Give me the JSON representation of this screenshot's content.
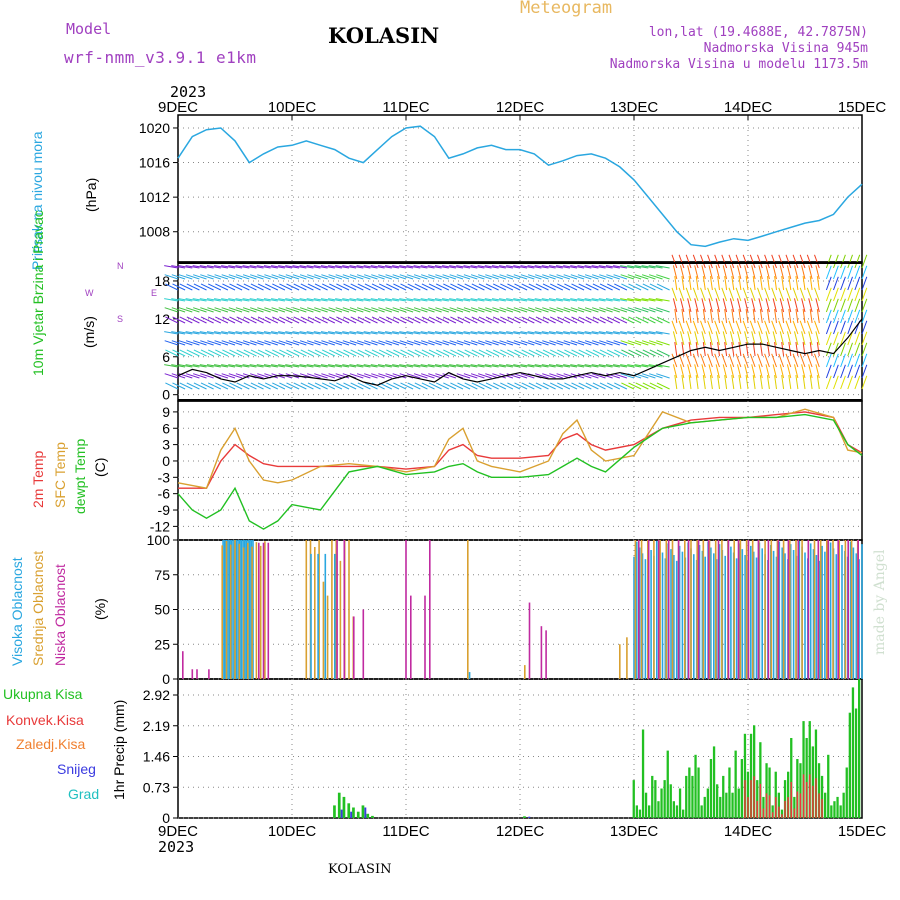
{
  "header": {
    "model_label": "Model",
    "model_name": "wrf-nmm_v3.9.1 e1km",
    "station": "KOLASIN",
    "meteogram": "Meteogram",
    "lonlat": "lon,lat (19.4688E, 42.7875N)",
    "altitude": "Nadmorska Visina 945m",
    "model_altitude": "Nadmorska Visina u modelu 1173.5m",
    "year_top": "2023",
    "year_bottom": "2023",
    "footer_station": "KOLASIN",
    "credit": "made by Angel"
  },
  "colors": {
    "pressure": "#2aa7e0",
    "temp": "#e83a3a",
    "sfc": "#d9a030",
    "dewpt": "#22c022",
    "high_cloud": "#2aa7e0",
    "mid_cloud": "#d9a030",
    "low_cloud": "#c02aa0",
    "total_precip": "#22c022",
    "conv_precip": "#e83a3a",
    "frozen": "#f08030",
    "snow": "#3a3ae0",
    "graupel": "#20c0c0"
  },
  "chart_data": [
    {
      "type": "line",
      "panel": "pressure",
      "xlabels": [
        "9DEC",
        "10DEC",
        "11DEC",
        "12DEC",
        "13DEC",
        "14DEC",
        "15DEC"
      ],
      "ylabel": "Pritisak na nivou mora",
      "unit": "(hPa)",
      "yticks": [
        "1008",
        "1012",
        "1016",
        "1020"
      ],
      "ylim": [
        1004.5,
        1021.5
      ],
      "series": [
        {
          "x": [
            0,
            3,
            6,
            9,
            12,
            15,
            18,
            21,
            24,
            27,
            30,
            33,
            36,
            39,
            42,
            45,
            48,
            51,
            54,
            57,
            60,
            63,
            66,
            69,
            72,
            75,
            78,
            81,
            84,
            87,
            90,
            93,
            96,
            99,
            102,
            105,
            108,
            111,
            114,
            117,
            120,
            123,
            126,
            129,
            132,
            135,
            138,
            141,
            144
          ],
          "y": [
            1016.5,
            1019,
            1019.8,
            1020,
            1018.5,
            1016,
            1017,
            1017.8,
            1018,
            1018.5,
            1018,
            1017.5,
            1016.5,
            1016,
            1017.5,
            1019,
            1020,
            1020.2,
            1019,
            1016.5,
            1017,
            1017.7,
            1018,
            1017.5,
            1017.5,
            1017,
            1015.7,
            1016.2,
            1016.8,
            1017,
            1016.5,
            1015.5,
            1014,
            1012,
            1010,
            1008,
            1006.5,
            1006.3,
            1006.8,
            1007.2,
            1007,
            1007.5,
            1008,
            1008.5,
            1009,
            1009.3,
            1010,
            1012,
            1013.5
          ]
        }
      ]
    },
    {
      "type": "line",
      "panel": "wind",
      "ylabel": "10m Vjetar Brzina i Pravac",
      "unit": "(m/s)",
      "compass": [
        "W",
        "E",
        "N",
        "S"
      ],
      "yticks": [
        "0",
        "6",
        "12",
        "18"
      ],
      "ylim": [
        -1,
        21
      ],
      "series": [
        {
          "name": "speed",
          "x": [
            0,
            3,
            6,
            9,
            12,
            15,
            18,
            21,
            24,
            27,
            30,
            33,
            36,
            39,
            42,
            45,
            48,
            51,
            54,
            57,
            60,
            63,
            66,
            69,
            72,
            75,
            78,
            81,
            84,
            87,
            90,
            93,
            96,
            99,
            102,
            105,
            108,
            111,
            114,
            117,
            120,
            123,
            126,
            129,
            132,
            135,
            138,
            141,
            144
          ],
          "y": [
            3,
            4,
            3.5,
            2.5,
            2,
            3,
            2.5,
            3,
            3,
            2.8,
            2.5,
            2.2,
            3,
            2,
            1.5,
            2.5,
            3,
            2.5,
            2,
            3.5,
            2.5,
            2,
            2.5,
            3,
            3.5,
            3,
            2.5,
            2.5,
            3,
            3.5,
            3,
            3.5,
            3,
            4,
            5,
            6,
            7,
            7.5,
            7,
            7.5,
            8,
            8,
            7.5,
            7,
            6.5,
            7,
            6.5,
            9,
            12
          ]
        }
      ]
    },
    {
      "type": "line",
      "panel": "temperature",
      "ylabels": [
        "2m Temp",
        "SFC Temp",
        "dewpt Temp"
      ],
      "unit": "(C)",
      "yticks": [
        "-12",
        "-9",
        "-6",
        "-3",
        "0",
        "3",
        "6",
        "9"
      ],
      "ylim": [
        -14.5,
        11
      ],
      "series": [
        {
          "name": "2m Temp",
          "x": [
            0,
            6,
            9,
            12,
            15,
            18,
            21,
            24,
            30,
            36,
            42,
            48,
            54,
            57,
            60,
            63,
            66,
            72,
            78,
            81,
            84,
            87,
            90,
            96,
            102,
            108,
            114,
            120,
            126,
            132,
            138,
            141,
            144
          ],
          "y": [
            -5,
            -5,
            0,
            3,
            1,
            -0.5,
            -1,
            -1,
            -1,
            -1,
            -1,
            -1.5,
            -1,
            2,
            3,
            1,
            0.5,
            0.5,
            1,
            4,
            5,
            3,
            2,
            3,
            6,
            7.5,
            8,
            8,
            8.5,
            9,
            8,
            3,
            1.5
          ]
        },
        {
          "name": "SFC Temp",
          "x": [
            0,
            6,
            9,
            12,
            15,
            18,
            21,
            24,
            30,
            36,
            42,
            48,
            54,
            57,
            60,
            63,
            66,
            72,
            78,
            81,
            84,
            87,
            90,
            96,
            102,
            108,
            114,
            120,
            126,
            132,
            138,
            141,
            144
          ],
          "y": [
            -4,
            -5,
            2,
            6,
            0,
            -3.5,
            -4,
            -3.5,
            -1,
            -0.5,
            -1,
            -2,
            -1,
            4,
            6,
            0,
            -1,
            -2,
            0,
            5,
            7.5,
            2,
            0,
            1,
            9,
            7,
            7.5,
            8,
            8,
            9.5,
            8,
            2,
            1.5
          ]
        },
        {
          "name": "dewpt Temp",
          "x": [
            0,
            3,
            6,
            9,
            12,
            15,
            18,
            21,
            24,
            30,
            36,
            42,
            48,
            54,
            57,
            60,
            63,
            66,
            72,
            78,
            81,
            84,
            87,
            90,
            96,
            102,
            108,
            114,
            120,
            126,
            132,
            138,
            141,
            144
          ],
          "y": [
            -6,
            -9,
            -10.5,
            -9,
            -5,
            -11,
            -12.5,
            -11,
            -8,
            -9,
            -2,
            -1,
            -2.5,
            -2,
            -1,
            -0.5,
            -2,
            -3,
            -3,
            -2.5,
            -1,
            0.5,
            -1,
            -2,
            2.5,
            6,
            7,
            7.5,
            8,
            8,
            8.5,
            7.5,
            3,
            1
          ]
        }
      ]
    },
    {
      "type": "bar",
      "panel": "clouds",
      "ylabels": [
        "Visoka Oblacnost",
        "Srednja Oblacnost",
        "Niska Oblacnost"
      ],
      "unit": "(%)",
      "yticks": [
        "0",
        "25",
        "50",
        "75",
        "100"
      ],
      "ylim": [
        0,
        100
      ]
    },
    {
      "type": "bar",
      "panel": "precipitation",
      "ylabels": [
        "Ukupna Kisa",
        "Konvek.Kisa",
        "Zaledj.Kisa",
        "Snijeg",
        "Grad"
      ],
      "unit": "1hr Precip (mm)",
      "yticks": [
        "0",
        "0.73",
        "1.46",
        "2.19",
        "2.92"
      ],
      "ylim": [
        0,
        3.3
      ]
    }
  ]
}
